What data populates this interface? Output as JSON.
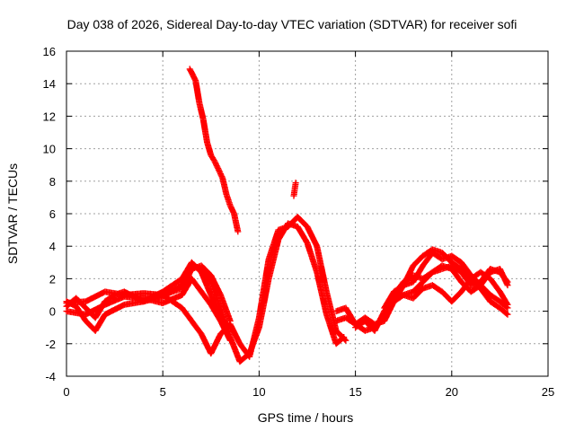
{
  "chart_data": {
    "type": "scatter",
    "title": "Day 038 of 2026, Sidereal Day-to-day VTEC variation (SDTVAR) for receiver sofi",
    "xlabel": "GPS time / hours",
    "ylabel": "SDTVAR / TECUs",
    "xlim": [
      0,
      25
    ],
    "ylim": [
      -4,
      16
    ],
    "x_ticks": [
      0,
      5,
      10,
      15,
      20,
      25
    ],
    "y_ticks": [
      -4,
      -2,
      0,
      2,
      4,
      6,
      8,
      10,
      12,
      14,
      16
    ],
    "grid": true,
    "marker": "+",
    "color": "#ff0000",
    "series": [
      {
        "name": "trace-a",
        "points": [
          [
            0,
            0.6
          ],
          [
            0.5,
            0.3
          ],
          [
            1,
            -0.6
          ],
          [
            1.5,
            -1.2
          ],
          [
            2,
            -0.2
          ],
          [
            3,
            0.4
          ],
          [
            4,
            0.6
          ],
          [
            5,
            0.9
          ],
          [
            6,
            1.6
          ],
          [
            6.5,
            2.8
          ],
          [
            7,
            2.6
          ],
          [
            7.5,
            1.8
          ],
          [
            8,
            0.2
          ],
          [
            8.5,
            -1.6
          ],
          [
            9,
            -3.1
          ],
          [
            9.5,
            -2.6
          ],
          [
            10,
            -1.0
          ],
          [
            10.5,
            2.0
          ],
          [
            11,
            4.4
          ],
          [
            11.5,
            5.4
          ],
          [
            12,
            5.2
          ],
          [
            12.5,
            4.2
          ],
          [
            13,
            2.4
          ],
          [
            13.5,
            -0.2
          ],
          [
            14,
            -2.0
          ],
          [
            14.4,
            -1.6
          ]
        ]
      },
      {
        "name": "trace-b",
        "points": [
          [
            0,
            0.5
          ],
          [
            1,
            0.6
          ],
          [
            2,
            1.2
          ],
          [
            3,
            1.0
          ],
          [
            4,
            1.1
          ],
          [
            5,
            1.0
          ],
          [
            5.5,
            0.6
          ],
          [
            6,
            0.2
          ],
          [
            6.5,
            -0.6
          ],
          [
            7,
            -1.4
          ],
          [
            7.5,
            -2.6
          ],
          [
            8,
            -1.4
          ],
          [
            8.5,
            -0.8
          ],
          [
            9,
            -2.0
          ],
          [
            9.5,
            -2.8
          ],
          [
            10,
            -0.4
          ],
          [
            10.5,
            3.2
          ],
          [
            11,
            5.0
          ],
          [
            11.5,
            5.2
          ],
          [
            12,
            5.8
          ],
          [
            12.5,
            5.2
          ],
          [
            13,
            4.0
          ],
          [
            13.5,
            1.2
          ],
          [
            14,
            -1.2
          ],
          [
            14.5,
            -1.8
          ]
        ]
      },
      {
        "name": "trace-c",
        "points": [
          [
            0,
            0.0
          ],
          [
            1,
            -0.2
          ],
          [
            2,
            0.4
          ],
          [
            3,
            0.9
          ],
          [
            4,
            0.8
          ],
          [
            5,
            0.5
          ],
          [
            6,
            1.0
          ],
          [
            6.5,
            2.0
          ],
          [
            7,
            1.2
          ],
          [
            7.5,
            0.4
          ],
          [
            8,
            -0.6
          ],
          [
            8.5,
            -1.8
          ]
        ]
      },
      {
        "name": "trace-d",
        "points": [
          [
            0,
            0.3
          ],
          [
            0.5,
            0.8
          ],
          [
            1,
            0.2
          ],
          [
            1.5,
            -0.4
          ],
          [
            2,
            0.6
          ],
          [
            2.5,
            1.0
          ],
          [
            3,
            1.2
          ],
          [
            4,
            0.6
          ],
          [
            5,
            1.2
          ],
          [
            6,
            2.0
          ],
          [
            6.5,
            3.0
          ],
          [
            7,
            2.4
          ],
          [
            7.5,
            1.0
          ],
          [
            8,
            -0.4
          ],
          [
            8.5,
            -1.0
          ]
        ]
      },
      {
        "name": "trace-e",
        "points": [
          [
            4.5,
            0.8
          ],
          [
            5,
            1.0
          ],
          [
            5.5,
            1.2
          ],
          [
            6,
            1.4
          ],
          [
            6.5,
            2.6
          ],
          [
            7,
            2.8
          ],
          [
            7.5,
            2.2
          ],
          [
            8,
            1.0
          ],
          [
            8.5,
            -0.6
          ]
        ]
      },
      {
        "name": "trace-f",
        "points": [
          [
            14,
            -0.6
          ],
          [
            14.5,
            -0.4
          ],
          [
            15,
            -0.8
          ],
          [
            15.5,
            -0.4
          ],
          [
            16,
            -0.8
          ],
          [
            16.5,
            -0.6
          ],
          [
            17,
            0.6
          ],
          [
            17.5,
            1.6
          ],
          [
            18,
            1.8
          ],
          [
            18.5,
            2.8
          ],
          [
            19,
            3.6
          ],
          [
            19.5,
            3.2
          ],
          [
            20,
            3.4
          ],
          [
            20.5,
            3.0
          ],
          [
            21,
            2.2
          ],
          [
            21.5,
            1.6
          ],
          [
            22,
            1.0
          ],
          [
            22.5,
            0.6
          ],
          [
            22.9,
            0.2
          ]
        ]
      },
      {
        "name": "trace-g",
        "points": [
          [
            14,
            0.0
          ],
          [
            14.5,
            0.2
          ],
          [
            15,
            -0.8
          ],
          [
            15.5,
            -1.2
          ],
          [
            16,
            -1.0
          ],
          [
            16.5,
            -0.4
          ],
          [
            17,
            1.0
          ],
          [
            17.5,
            1.8
          ],
          [
            18,
            2.2
          ],
          [
            18.5,
            2.0
          ],
          [
            19,
            2.4
          ],
          [
            19.5,
            2.8
          ],
          [
            20,
            2.6
          ],
          [
            20.5,
            1.8
          ],
          [
            21,
            1.2
          ],
          [
            21.5,
            1.6
          ],
          [
            22,
            2.4
          ],
          [
            22.5,
            2.6
          ],
          [
            22.9,
            1.6
          ]
        ]
      },
      {
        "name": "trace-h",
        "points": [
          [
            15,
            -1.0
          ],
          [
            15.5,
            -0.6
          ],
          [
            16,
            -1.2
          ],
          [
            16.5,
            0.0
          ],
          [
            17,
            0.8
          ],
          [
            17.5,
            1.0
          ],
          [
            18,
            0.8
          ],
          [
            18.5,
            1.4
          ],
          [
            19,
            1.6
          ],
          [
            19.5,
            1.2
          ],
          [
            20,
            0.6
          ],
          [
            20.5,
            1.2
          ],
          [
            21,
            2.0
          ],
          [
            21.5,
            2.4
          ],
          [
            22,
            2.0
          ],
          [
            22.5,
            1.2
          ],
          [
            22.9,
            0.4
          ]
        ]
      },
      {
        "name": "trace-i",
        "points": [
          [
            16.5,
            0.2
          ],
          [
            17,
            1.2
          ],
          [
            17.5,
            1.6
          ],
          [
            18,
            2.8
          ],
          [
            18.5,
            3.4
          ],
          [
            19,
            3.8
          ],
          [
            19.5,
            3.6
          ],
          [
            20,
            3.0
          ],
          [
            20.5,
            2.6
          ],
          [
            21,
            2.0
          ],
          [
            21.5,
            1.4
          ],
          [
            22,
            0.6
          ],
          [
            22.5,
            0.2
          ],
          [
            22.9,
            -0.2
          ]
        ]
      },
      {
        "name": "trace-j",
        "points": [
          [
            17,
            0.6
          ],
          [
            17.5,
            1.0
          ],
          [
            18,
            1.2
          ],
          [
            18.5,
            1.8
          ],
          [
            19,
            2.4
          ],
          [
            19.5,
            2.6
          ],
          [
            20,
            2.8
          ],
          [
            20.5,
            2.4
          ],
          [
            21,
            1.6
          ],
          [
            21.5,
            1.8
          ],
          [
            22,
            2.6
          ],
          [
            22.5,
            2.4
          ],
          [
            22.9,
            1.8
          ]
        ]
      },
      {
        "name": "trace-k",
        "points": [
          [
            6.4,
            14.9
          ],
          [
            6.7,
            14.2
          ],
          [
            6.9,
            12.8
          ],
          [
            7.1,
            11.8
          ],
          [
            7.3,
            10.4
          ],
          [
            7.5,
            9.6
          ],
          [
            7.7,
            9.2
          ],
          [
            7.9,
            8.7
          ],
          [
            8.1,
            8.2
          ],
          [
            8.3,
            7.2
          ],
          [
            8.5,
            6.5
          ],
          [
            8.7,
            6.0
          ],
          [
            8.9,
            4.9
          ]
        ]
      },
      {
        "name": "trace-l",
        "points": [
          [
            11.8,
            7.1
          ],
          [
            11.85,
            7.5
          ],
          [
            11.9,
            7.9
          ]
        ]
      }
    ]
  }
}
